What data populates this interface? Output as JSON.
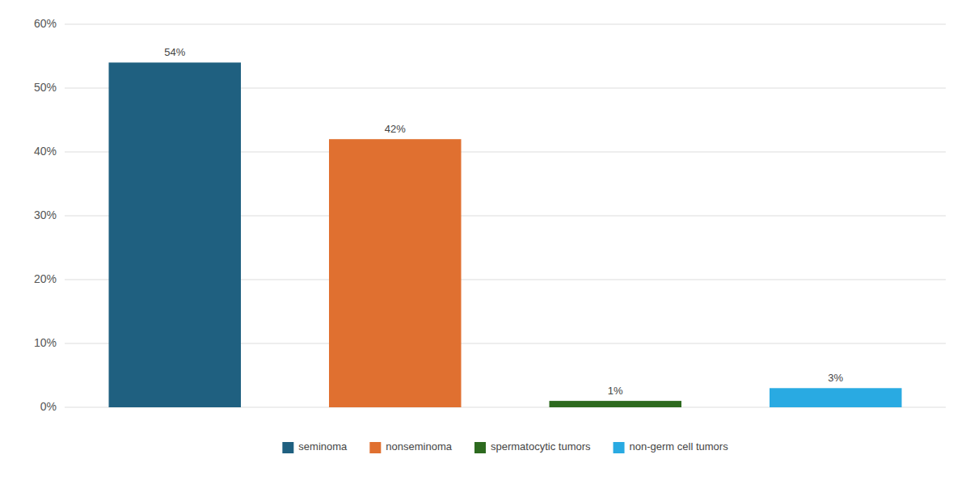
{
  "chart_data": {
    "type": "bar",
    "categories": [
      "seminoma",
      "nonseminoma",
      "spermatocytic tumors",
      "non-germ cell tumors"
    ],
    "values": [
      54,
      42,
      1,
      3
    ],
    "value_labels": [
      "54%",
      "42%",
      "1%",
      "3%"
    ],
    "colors": [
      "#1f6080",
      "#e07030",
      "#2d6a1f",
      "#29aae2"
    ],
    "ylim": [
      0,
      60
    ],
    "yticks": [
      {
        "value": 0,
        "label": "0%"
      },
      {
        "value": 10,
        "label": "10%"
      },
      {
        "value": 20,
        "label": "20%"
      },
      {
        "value": 30,
        "label": "30%"
      },
      {
        "value": 40,
        "label": "40%"
      },
      {
        "value": 50,
        "label": "50%"
      },
      {
        "value": 60,
        "label": "60%"
      }
    ],
    "grid": true,
    "data_labels": true,
    "legend": "bottom",
    "tick_labels": "y"
  }
}
